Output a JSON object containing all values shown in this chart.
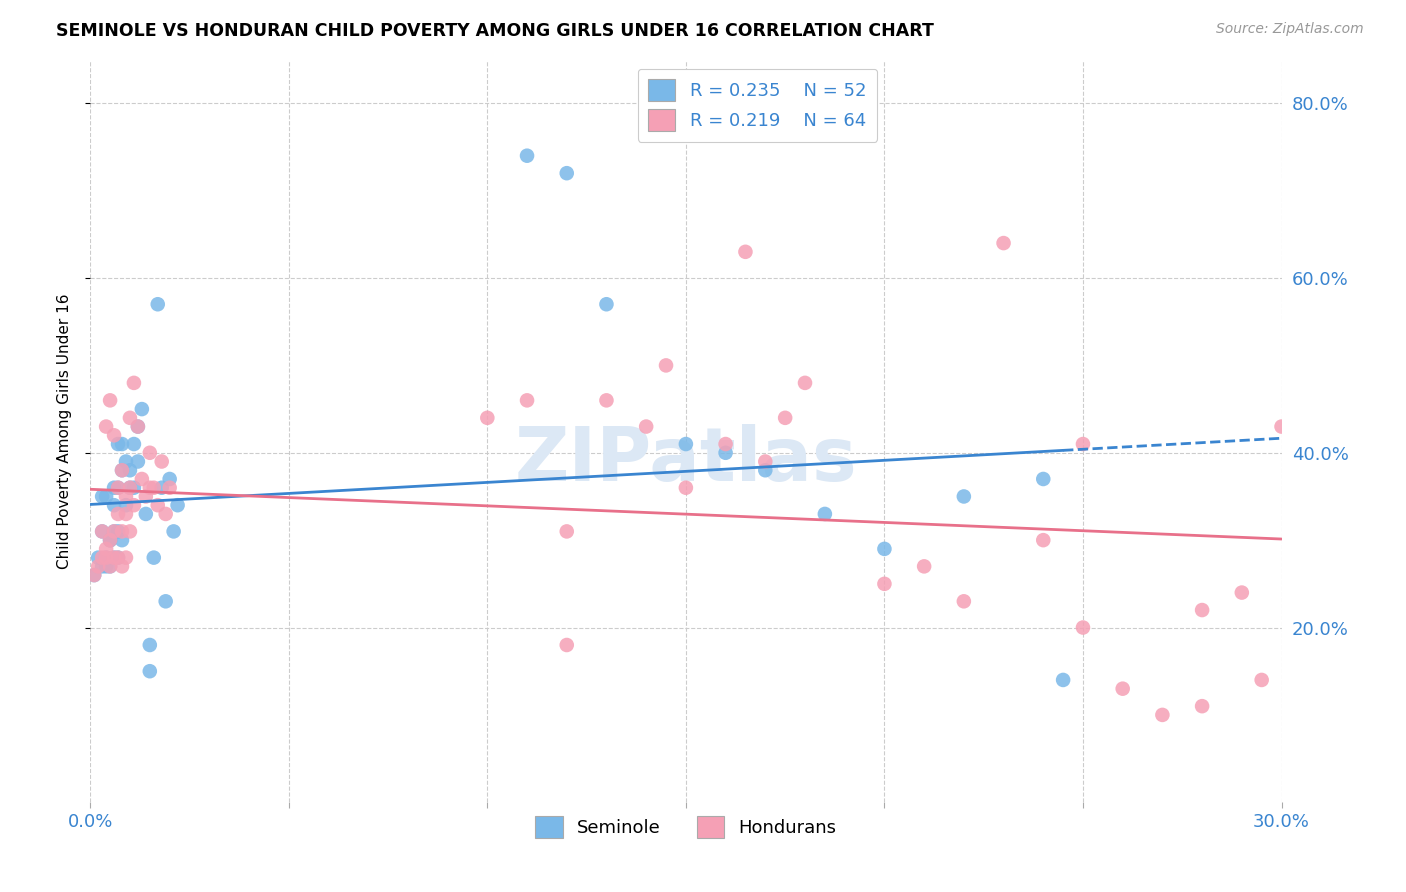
{
  "title": "SEMINOLE VS HONDURAN CHILD POVERTY AMONG GIRLS UNDER 16 CORRELATION CHART",
  "source": "Source: ZipAtlas.com",
  "ylabel": "Child Poverty Among Girls Under 16",
  "xlim": [
    0.0,
    0.3
  ],
  "ylim": [
    0.0,
    0.85
  ],
  "xtick_positions": [
    0.0,
    0.05,
    0.1,
    0.15,
    0.2,
    0.25,
    0.3
  ],
  "xtick_labels": [
    "0.0%",
    "",
    "",
    "",
    "",
    "",
    "30.0%"
  ],
  "ytick_values": [
    0.2,
    0.4,
    0.6,
    0.8
  ],
  "ytick_labels": [
    "20.0%",
    "40.0%",
    "60.0%",
    "80.0%"
  ],
  "seminole_R": 0.235,
  "seminole_N": 52,
  "honduran_R": 0.219,
  "honduran_N": 64,
  "seminole_color": "#7ab8e8",
  "honduran_color": "#f5a0b5",
  "trend_seminole_color": "#3a85d0",
  "trend_honduran_color": "#e8708a",
  "background_color": "#ffffff",
  "grid_color": "#cccccc",
  "watermark_color": "#dce8f5",
  "seminole_x": [
    0.001,
    0.002,
    0.003,
    0.003,
    0.004,
    0.004,
    0.005,
    0.005,
    0.006,
    0.006,
    0.006,
    0.007,
    0.007,
    0.007,
    0.008,
    0.008,
    0.008,
    0.009,
    0.009,
    0.01,
    0.01,
    0.011,
    0.011,
    0.012,
    0.012,
    0.013,
    0.014,
    0.015,
    0.015,
    0.016,
    0.017,
    0.018,
    0.019,
    0.02,
    0.021,
    0.022,
    0.003,
    0.004,
    0.005,
    0.006,
    0.007,
    0.11,
    0.12,
    0.13,
    0.15,
    0.16,
    0.17,
    0.185,
    0.2,
    0.22,
    0.24,
    0.245
  ],
  "seminole_y": [
    0.26,
    0.28,
    0.27,
    0.31,
    0.28,
    0.27,
    0.27,
    0.3,
    0.28,
    0.31,
    0.34,
    0.28,
    0.31,
    0.36,
    0.3,
    0.38,
    0.41,
    0.34,
    0.39,
    0.38,
    0.36,
    0.36,
    0.41,
    0.39,
    0.43,
    0.45,
    0.33,
    0.15,
    0.18,
    0.28,
    0.57,
    0.36,
    0.23,
    0.37,
    0.31,
    0.34,
    0.35,
    0.35,
    0.3,
    0.36,
    0.41,
    0.74,
    0.72,
    0.57,
    0.41,
    0.4,
    0.38,
    0.33,
    0.29,
    0.35,
    0.37,
    0.14
  ],
  "honduran_x": [
    0.001,
    0.002,
    0.003,
    0.003,
    0.004,
    0.004,
    0.005,
    0.005,
    0.006,
    0.006,
    0.007,
    0.007,
    0.007,
    0.008,
    0.008,
    0.009,
    0.009,
    0.01,
    0.01,
    0.011,
    0.012,
    0.013,
    0.014,
    0.015,
    0.015,
    0.016,
    0.017,
    0.018,
    0.019,
    0.02,
    0.004,
    0.005,
    0.006,
    0.008,
    0.009,
    0.01,
    0.011,
    0.1,
    0.11,
    0.12,
    0.13,
    0.14,
    0.15,
    0.16,
    0.17,
    0.175,
    0.18,
    0.2,
    0.21,
    0.22,
    0.23,
    0.24,
    0.25,
    0.26,
    0.27,
    0.28,
    0.29,
    0.295,
    0.3,
    0.12,
    0.145,
    0.165,
    0.25,
    0.28
  ],
  "honduran_y": [
    0.26,
    0.27,
    0.28,
    0.31,
    0.28,
    0.29,
    0.27,
    0.3,
    0.28,
    0.31,
    0.28,
    0.33,
    0.36,
    0.27,
    0.31,
    0.28,
    0.33,
    0.31,
    0.36,
    0.34,
    0.43,
    0.37,
    0.35,
    0.36,
    0.4,
    0.36,
    0.34,
    0.39,
    0.33,
    0.36,
    0.43,
    0.46,
    0.42,
    0.38,
    0.35,
    0.44,
    0.48,
    0.44,
    0.46,
    0.31,
    0.46,
    0.43,
    0.36,
    0.41,
    0.39,
    0.44,
    0.48,
    0.25,
    0.27,
    0.23,
    0.64,
    0.3,
    0.41,
    0.13,
    0.1,
    0.11,
    0.24,
    0.14,
    0.43,
    0.18,
    0.5,
    0.63,
    0.2,
    0.22
  ]
}
